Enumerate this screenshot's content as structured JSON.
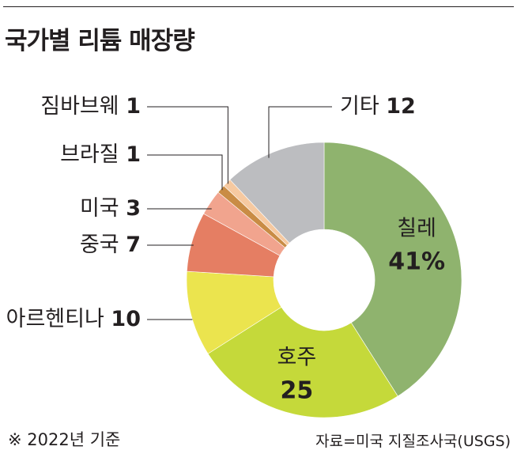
{
  "title": "국가별 리튬 매장량",
  "footnote": "※ 2022년 기준",
  "source": "자료=미국 지질조사국(USGS)",
  "chart_data": {
    "type": "pie",
    "donut": true,
    "title": "국가별 리튬 매장량",
    "unit": "%",
    "slices": [
      {
        "label": "칠레",
        "value": 41,
        "value_text": "41%",
        "color": "#8fb36e",
        "label_position": "inside"
      },
      {
        "label": "호주",
        "value": 25,
        "value_text": "25",
        "color": "#c5d93a",
        "label_position": "inside"
      },
      {
        "label": "아르헨티나",
        "value": 10,
        "value_text": "10",
        "color": "#ebe44e",
        "label_position": "outside"
      },
      {
        "label": "중국",
        "value": 7,
        "value_text": "7",
        "color": "#e57e63",
        "label_position": "outside"
      },
      {
        "label": "미국",
        "value": 3,
        "value_text": "3",
        "color": "#f1a48e",
        "label_position": "outside"
      },
      {
        "label": "브라질",
        "value": 1,
        "value_text": "1",
        "color": "#c98c45",
        "label_position": "outside"
      },
      {
        "label": "짐바브웨",
        "value": 1,
        "value_text": "1",
        "color": "#f6c9a0",
        "label_position": "outside"
      },
      {
        "label": "기타",
        "value": 12,
        "value_text": "12",
        "color": "#bcbdc0",
        "label_position": "outside"
      }
    ]
  }
}
